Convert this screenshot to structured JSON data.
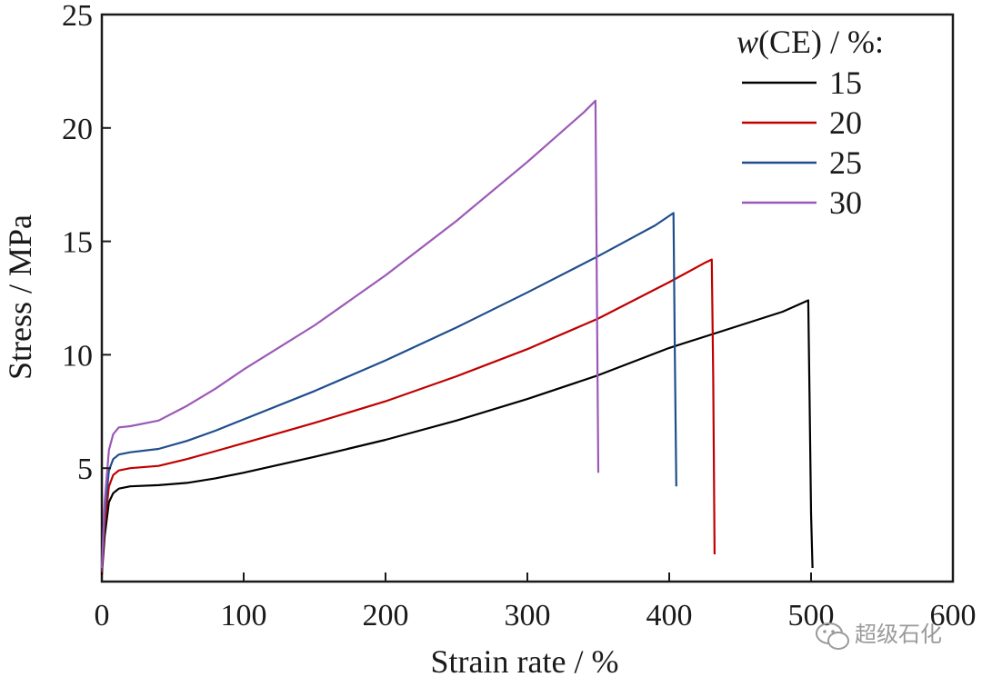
{
  "chart_data": {
    "type": "line",
    "title": "",
    "xlabel": "Strain rate / %",
    "ylabel": "Stress / MPa",
    "xlim": [
      0,
      600
    ],
    "ylim": [
      0,
      25
    ],
    "xticks": [
      "0",
      "100",
      "200",
      "300",
      "400",
      "500",
      "600"
    ],
    "yticks": [
      "5",
      "10",
      "15",
      "20",
      "25"
    ],
    "xtick_values": [
      0,
      100,
      200,
      300,
      400,
      500,
      600
    ],
    "ytick_values": [
      5,
      10,
      15,
      20,
      25
    ],
    "grid": false,
    "legend": {
      "title_italic": "w",
      "title_rest": "(CE) / %:",
      "placement": "top-right"
    },
    "series": [
      {
        "name": "15",
        "color": "#000000",
        "x": [
          0,
          2,
          5,
          8,
          12,
          20,
          40,
          60,
          80,
          100,
          150,
          200,
          250,
          300,
          350,
          400,
          450,
          480,
          498,
          499,
          500,
          501
        ],
        "y": [
          0.3,
          2.0,
          3.5,
          3.9,
          4.1,
          4.2,
          4.25,
          4.35,
          4.55,
          4.8,
          5.5,
          6.25,
          7.1,
          8.05,
          9.1,
          10.3,
          11.3,
          11.9,
          12.4,
          8.0,
          3.0,
          0.6
        ]
      },
      {
        "name": "20",
        "color": "#c00000",
        "x": [
          0,
          2,
          5,
          8,
          12,
          20,
          40,
          60,
          80,
          100,
          150,
          200,
          250,
          300,
          350,
          400,
          425,
          430,
          431,
          432
        ],
        "y": [
          0.4,
          2.5,
          4.2,
          4.7,
          4.9,
          5.0,
          5.1,
          5.4,
          5.75,
          6.1,
          7.0,
          7.95,
          9.05,
          10.25,
          11.6,
          13.2,
          14.05,
          14.2,
          9.0,
          1.2
        ]
      },
      {
        "name": "25",
        "color": "#1f4e8c",
        "x": [
          0,
          2,
          5,
          8,
          12,
          20,
          40,
          60,
          80,
          100,
          150,
          200,
          250,
          300,
          350,
          390,
          403,
          404,
          405
        ],
        "y": [
          0.5,
          3.0,
          4.9,
          5.4,
          5.6,
          5.7,
          5.85,
          6.2,
          6.65,
          7.15,
          8.4,
          9.75,
          11.2,
          12.75,
          14.35,
          15.7,
          16.25,
          10.0,
          4.2
        ]
      },
      {
        "name": "30",
        "color": "#9b59b6",
        "x": [
          0,
          2,
          5,
          8,
          12,
          20,
          40,
          60,
          80,
          100,
          150,
          200,
          250,
          300,
          340,
          348,
          349,
          350
        ],
        "y": [
          0.6,
          3.5,
          5.8,
          6.5,
          6.8,
          6.85,
          7.1,
          7.75,
          8.5,
          9.35,
          11.3,
          13.5,
          15.9,
          18.5,
          20.7,
          21.2,
          13.0,
          4.8
        ]
      }
    ]
  },
  "watermark": {
    "text": "超级石化",
    "icon": "wechat-icon"
  }
}
